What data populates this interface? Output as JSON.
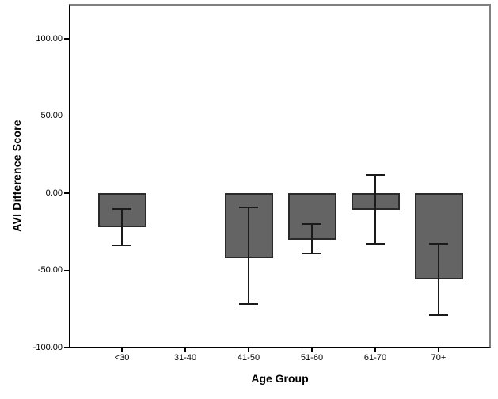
{
  "chart_data": {
    "type": "bar",
    "title": "",
    "xlabel": "Age Group",
    "ylabel": "AVI Difference Score",
    "categories": [
      "<30",
      "31-40",
      "41-50",
      "51-60",
      "61-70",
      "70+"
    ],
    "values": [
      -22,
      null,
      -42,
      -30,
      -11,
      -56
    ],
    "error_bars": [
      {
        "low": -34,
        "high": -10
      },
      null,
      {
        "low": -72,
        "high": -9
      },
      {
        "low": -39,
        "high": -20
      },
      {
        "low": -33,
        "high": 12
      },
      {
        "low": -79,
        "high": -33
      }
    ],
    "yticks": [
      100,
      50,
      0,
      -50,
      -100
    ],
    "ytick_labels": [
      "100.00",
      "50.00",
      "0.00",
      "-50.00",
      "-100.00"
    ],
    "ylim": [
      -100,
      122
    ],
    "grid": false,
    "legend_position": "none",
    "colors": {
      "bar_fill": "#646464",
      "bar_border": "#2a2a2a",
      "error_bar": "#1a1a1a",
      "frame": "#808080",
      "axis": "#000000",
      "background": "#ffffff"
    }
  }
}
